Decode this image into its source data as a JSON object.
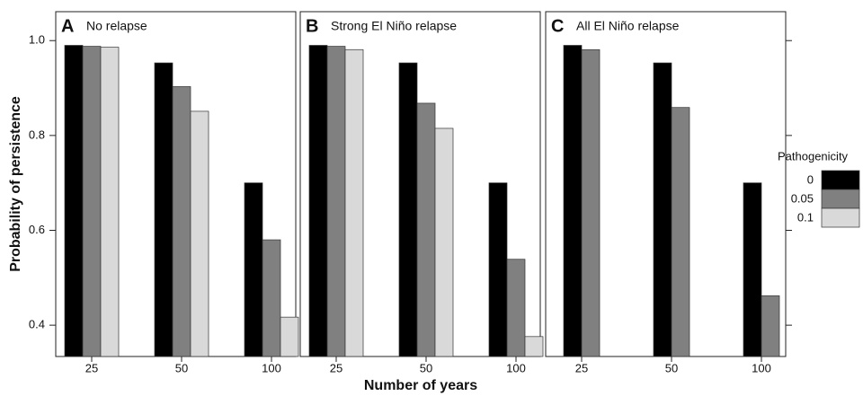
{
  "figure": {
    "xlabel": "Number of years",
    "ylabel": "Probability of persistence",
    "legend_title": "Pathogenicity"
  },
  "chart_data": [
    {
      "type": "bar",
      "panel_label": "A",
      "title": "No relapse",
      "categories": [
        "25",
        "50",
        "100"
      ],
      "series": [
        {
          "name": "0",
          "color": "#000000",
          "values": [
            0.99,
            0.953,
            0.7
          ]
        },
        {
          "name": "0.05",
          "color": "#808080",
          "values": [
            0.988,
            0.903,
            0.58
          ]
        },
        {
          "name": "0.1",
          "color": "#d9d9d9",
          "values": [
            0.986,
            0.851,
            0.417
          ]
        }
      ],
      "ylim": [
        0.334,
        1.061
      ],
      "yticks": [
        {
          "value": 0.4,
          "label": "0.4"
        },
        {
          "value": 0.6,
          "label": "0.6"
        },
        {
          "value": 0.8,
          "label": "0.8"
        },
        {
          "value": 1,
          "label": "1.0"
        }
      ],
      "ytick_side": "left"
    },
    {
      "type": "bar",
      "panel_label": "B",
      "title": "Strong El Niño relapse",
      "categories": [
        "25",
        "50",
        "100"
      ],
      "series": [
        {
          "name": "0",
          "color": "#000000",
          "values": [
            0.99,
            0.953,
            0.7
          ]
        },
        {
          "name": "0.05",
          "color": "#808080",
          "values": [
            0.988,
            0.868,
            0.539
          ]
        },
        {
          "name": "0.1",
          "color": "#d9d9d9",
          "values": [
            0.981,
            0.815,
            0.376
          ]
        }
      ],
      "ylim": [
        0.334,
        1.061
      ]
    },
    {
      "type": "bar",
      "panel_label": "C",
      "title": "All El Niño relapse",
      "categories": [
        "25",
        "50",
        "100"
      ],
      "series": [
        {
          "name": "0",
          "color": "#000000",
          "values": [
            0.99,
            0.953,
            0.7
          ]
        },
        {
          "name": "0.05",
          "color": "#808080",
          "values": [
            0.981,
            0.859,
            0.462
          ]
        }
      ],
      "ylim": [
        0.334,
        1.061
      ],
      "yticks": [
        0.4,
        0.6,
        0.8,
        1
      ],
      "ytick_side": "right",
      "ytick_labels": false
    }
  ]
}
